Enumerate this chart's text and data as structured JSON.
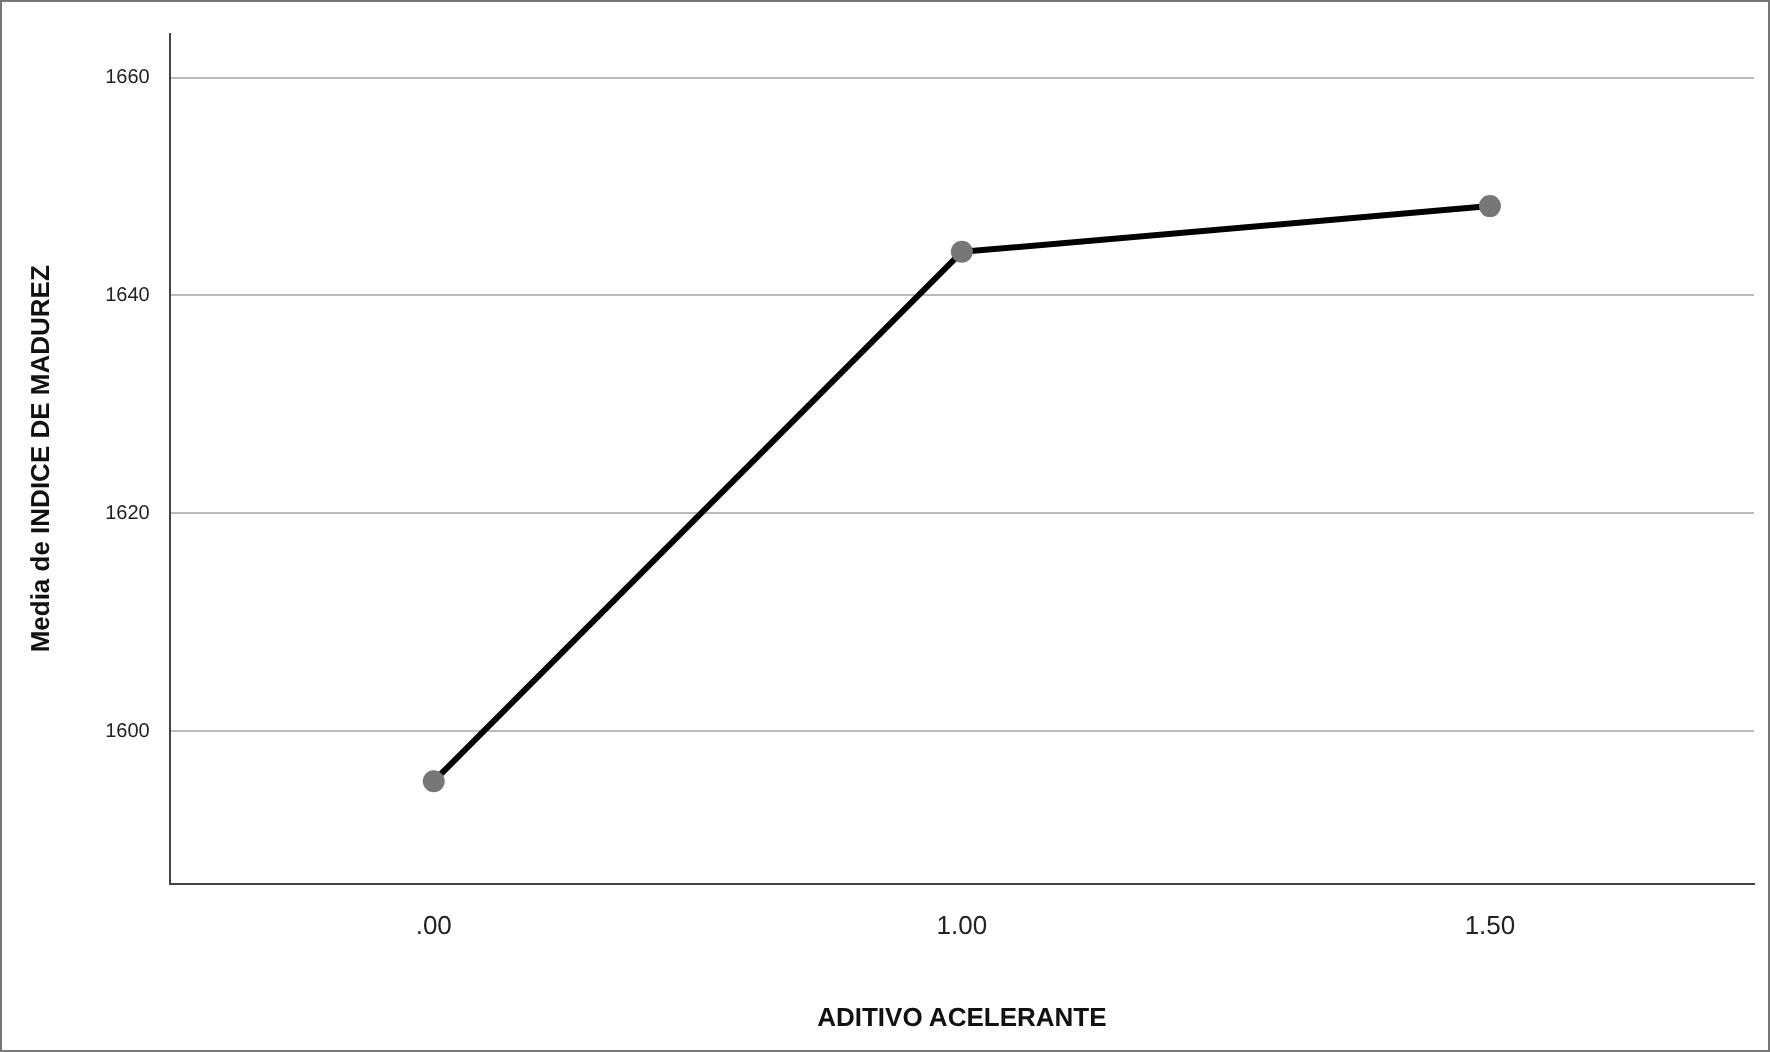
{
  "chart_data": {
    "type": "line",
    "xlabel": "ADITIVO ACELERANTE",
    "ylabel": "Media de INDICE DE MADUREZ",
    "categories": [
      ".00",
      "1.00",
      "1.50"
    ],
    "series": [
      {
        "color": "#000000",
        "values": [
          1595.4,
          1644.0,
          1648.2
        ]
      }
    ],
    "ylim": [
      1586,
      1664
    ],
    "yticks": [
      1600,
      1620,
      1640,
      1660
    ],
    "grid": "y",
    "legend": false,
    "marker": "circle",
    "line_style": "solid"
  }
}
